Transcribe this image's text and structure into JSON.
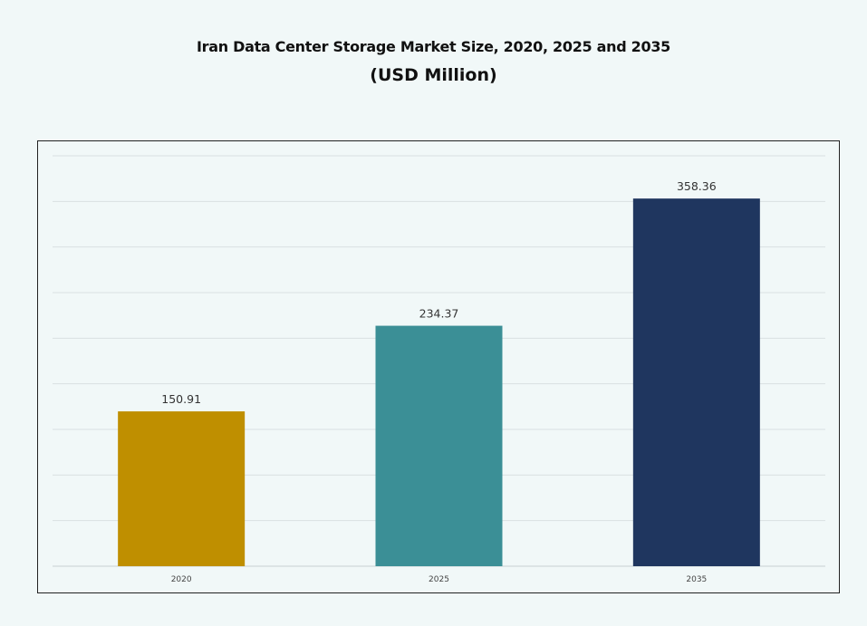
{
  "chart_data": {
    "type": "bar",
    "title": "Iran Data Center Storage Market Size, 2020, 2025 and 2035",
    "subtitle": "(USD Million)",
    "categories": [
      "2020",
      "2025",
      "2035"
    ],
    "values": [
      150.91,
      234.37,
      358.36
    ],
    "value_labels": [
      "150.91",
      "234.37",
      "358.36"
    ],
    "colors": [
      "#bf8f00",
      "#3b8f96",
      "#1f365f"
    ],
    "xlabel": "",
    "ylabel": "",
    "ylim": [
      0,
      400
    ],
    "grid": true,
    "legend": "none"
  }
}
